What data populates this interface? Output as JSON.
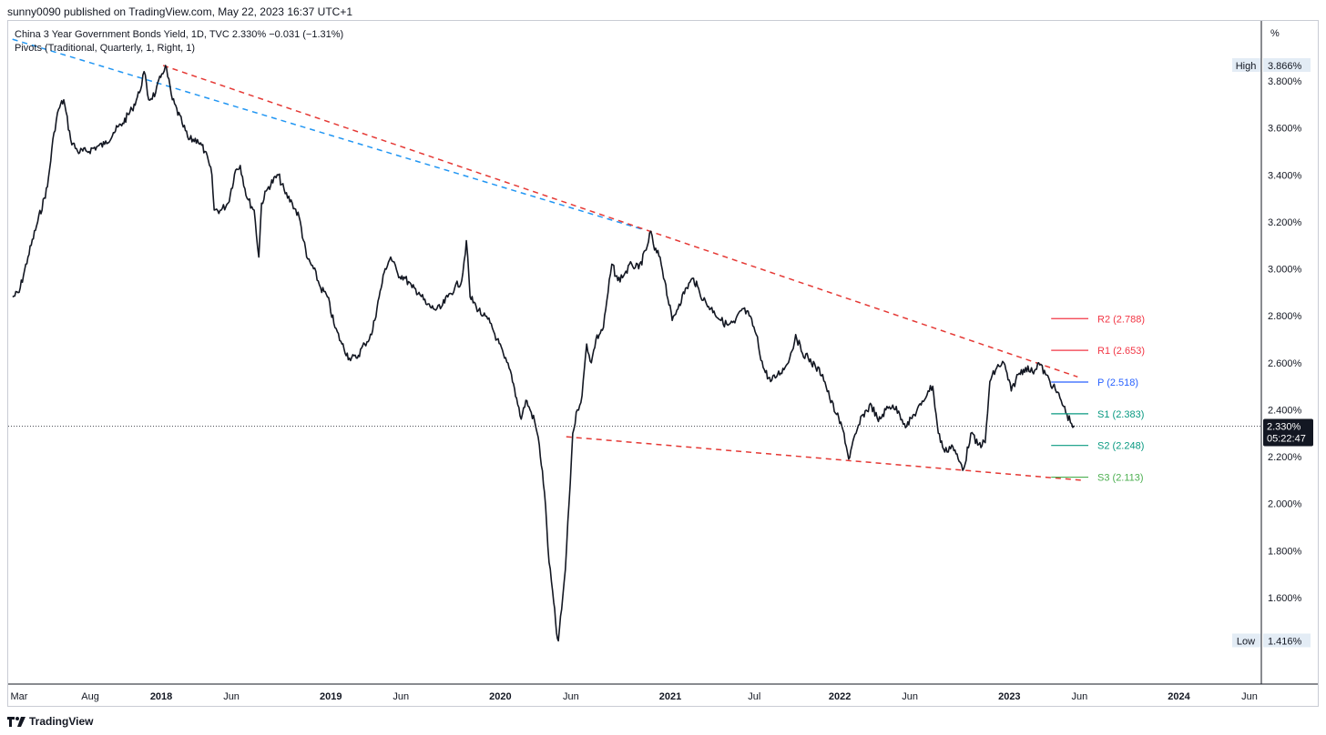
{
  "header": {
    "published_text": "sunny0090 published on TradingView.com, May 22, 2023 16:37 UTC+1"
  },
  "legend": {
    "line1": "China 3 Year Government Bonds Yield, 1D, TVC  2.330%  −0.031 (−1.31%)",
    "line2": "Pivots (Traditional, Quarterly, 1, Right, 1)"
  },
  "footer": {
    "brand": "TradingView"
  },
  "chart_data": {
    "type": "line",
    "title": "China 3 Year Government Bonds Yield, 1D, TVC",
    "y_unit_label": "%",
    "ylim": [
      1.3,
      3.97
    ],
    "y_ticks": [
      "3.800%",
      "3.600%",
      "3.400%",
      "3.200%",
      "3.000%",
      "2.800%",
      "2.600%",
      "2.400%",
      "2.200%",
      "2.000%",
      "1.800%",
      "1.600%"
    ],
    "y_tick_values": [
      3.8,
      3.6,
      3.4,
      3.2,
      3.0,
      2.8,
      2.6,
      2.4,
      2.2,
      2.0,
      1.8,
      1.6
    ],
    "x_ticks": [
      {
        "label": "Mar",
        "date": "2017-03-01",
        "bold": false
      },
      {
        "label": "Aug",
        "date": "2017-08-01",
        "bold": false
      },
      {
        "label": "2018",
        "date": "2018-01-01",
        "bold": true
      },
      {
        "label": "Jun",
        "date": "2018-06-01",
        "bold": false
      },
      {
        "label": "2019",
        "date": "2019-01-01",
        "bold": true
      },
      {
        "label": "Jun",
        "date": "2019-06-01",
        "bold": false
      },
      {
        "label": "2020",
        "date": "2020-01-01",
        "bold": true
      },
      {
        "label": "Jun",
        "date": "2020-06-01",
        "bold": false
      },
      {
        "label": "2021",
        "date": "2021-01-01",
        "bold": true
      },
      {
        "label": "Jul",
        "date": "2021-07-01",
        "bold": false
      },
      {
        "label": "2022",
        "date": "2022-01-01",
        "bold": true
      },
      {
        "label": "Jun",
        "date": "2022-06-01",
        "bold": false
      },
      {
        "label": "2023",
        "date": "2023-01-01",
        "bold": true
      },
      {
        "label": "Jun",
        "date": "2023-06-01",
        "bold": false
      },
      {
        "label": "2024",
        "date": "2024-01-01",
        "bold": true
      },
      {
        "label": "Jun",
        "date": "2024-06-01",
        "bold": false
      }
    ],
    "series": [
      {
        "color": "#131722",
        "points": [
          [
            "2017-02-15",
            2.88
          ],
          [
            "2017-03-01",
            2.9
          ],
          [
            "2017-03-20",
            3.05
          ],
          [
            "2017-04-10",
            3.2
          ],
          [
            "2017-05-01",
            3.35
          ],
          [
            "2017-05-15",
            3.58
          ],
          [
            "2017-05-25",
            3.68
          ],
          [
            "2017-06-05",
            3.72
          ],
          [
            "2017-06-20",
            3.55
          ],
          [
            "2017-07-05",
            3.5
          ],
          [
            "2017-07-25",
            3.5
          ],
          [
            "2017-08-15",
            3.52
          ],
          [
            "2017-09-01",
            3.53
          ],
          [
            "2017-09-20",
            3.58
          ],
          [
            "2017-10-10",
            3.62
          ],
          [
            "2017-10-30",
            3.68
          ],
          [
            "2017-11-15",
            3.75
          ],
          [
            "2017-11-25",
            3.84
          ],
          [
            "2017-12-05",
            3.72
          ],
          [
            "2017-12-20",
            3.75
          ],
          [
            "2018-01-02",
            3.83
          ],
          [
            "2018-01-10",
            3.866
          ],
          [
            "2018-01-25",
            3.72
          ],
          [
            "2018-02-15",
            3.62
          ],
          [
            "2018-03-01",
            3.55
          ],
          [
            "2018-03-20",
            3.55
          ],
          [
            "2018-04-05",
            3.5
          ],
          [
            "2018-04-20",
            3.4
          ],
          [
            "2018-04-25",
            3.25
          ],
          [
            "2018-05-10",
            3.25
          ],
          [
            "2018-05-25",
            3.28
          ],
          [
            "2018-06-10",
            3.42
          ],
          [
            "2018-06-20",
            3.44
          ],
          [
            "2018-07-05",
            3.3
          ],
          [
            "2018-07-20",
            3.25
          ],
          [
            "2018-07-30",
            3.05
          ],
          [
            "2018-08-05",
            3.28
          ],
          [
            "2018-08-20",
            3.35
          ],
          [
            "2018-09-10",
            3.4
          ],
          [
            "2018-09-25",
            3.32
          ],
          [
            "2018-10-10",
            3.28
          ],
          [
            "2018-10-25",
            3.22
          ],
          [
            "2018-11-10",
            3.05
          ],
          [
            "2018-11-25",
            3.0
          ],
          [
            "2018-12-10",
            2.92
          ],
          [
            "2018-12-25",
            2.88
          ],
          [
            "2019-01-10",
            2.75
          ],
          [
            "2019-01-25",
            2.68
          ],
          [
            "2019-02-10",
            2.62
          ],
          [
            "2019-02-25",
            2.62
          ],
          [
            "2019-03-15",
            2.68
          ],
          [
            "2019-03-30",
            2.72
          ],
          [
            "2019-04-15",
            2.88
          ],
          [
            "2019-04-28",
            3.0
          ],
          [
            "2019-05-10",
            3.05
          ],
          [
            "2019-05-25",
            2.98
          ],
          [
            "2019-06-10",
            2.96
          ],
          [
            "2019-06-25",
            2.92
          ],
          [
            "2019-07-10",
            2.9
          ],
          [
            "2019-07-25",
            2.85
          ],
          [
            "2019-08-10",
            2.83
          ],
          [
            "2019-08-25",
            2.83
          ],
          [
            "2019-09-10",
            2.88
          ],
          [
            "2019-09-25",
            2.92
          ],
          [
            "2019-10-10",
            2.95
          ],
          [
            "2019-10-20",
            3.12
          ],
          [
            "2019-10-28",
            2.88
          ],
          [
            "2019-11-10",
            2.84
          ],
          [
            "2019-11-25",
            2.8
          ],
          [
            "2019-12-10",
            2.77
          ],
          [
            "2019-12-25",
            2.7
          ],
          [
            "2020-01-10",
            2.62
          ],
          [
            "2020-01-25",
            2.55
          ],
          [
            "2020-02-05",
            2.45
          ],
          [
            "2020-02-15",
            2.36
          ],
          [
            "2020-02-25",
            2.44
          ],
          [
            "2020-03-05",
            2.4
          ],
          [
            "2020-03-15",
            2.35
          ],
          [
            "2020-03-25",
            2.25
          ],
          [
            "2020-04-05",
            2.05
          ],
          [
            "2020-04-15",
            1.75
          ],
          [
            "2020-04-25",
            1.58
          ],
          [
            "2020-05-01",
            1.45
          ],
          [
            "2020-05-05",
            1.416
          ],
          [
            "2020-05-12",
            1.55
          ],
          [
            "2020-05-20",
            1.72
          ],
          [
            "2020-05-28",
            2.0
          ],
          [
            "2020-06-05",
            2.3
          ],
          [
            "2020-06-15",
            2.4
          ],
          [
            "2020-06-25",
            2.46
          ],
          [
            "2020-07-05",
            2.68
          ],
          [
            "2020-07-15",
            2.6
          ],
          [
            "2020-07-25",
            2.7
          ],
          [
            "2020-08-10",
            2.75
          ],
          [
            "2020-08-20",
            2.9
          ],
          [
            "2020-08-28",
            3.02
          ],
          [
            "2020-09-10",
            2.95
          ],
          [
            "2020-09-25",
            2.98
          ],
          [
            "2020-10-10",
            3.02
          ],
          [
            "2020-10-25",
            3.0
          ],
          [
            "2020-11-10",
            3.08
          ],
          [
            "2020-11-20",
            3.16
          ],
          [
            "2020-11-28",
            3.08
          ],
          [
            "2020-12-10",
            3.05
          ],
          [
            "2020-12-20",
            2.95
          ],
          [
            "2021-01-05",
            2.78
          ],
          [
            "2021-01-20",
            2.85
          ],
          [
            "2021-02-05",
            2.92
          ],
          [
            "2021-02-20",
            2.96
          ],
          [
            "2021-03-05",
            2.9
          ],
          [
            "2021-03-20",
            2.85
          ],
          [
            "2021-04-05",
            2.82
          ],
          [
            "2021-04-20",
            2.78
          ],
          [
            "2021-05-05",
            2.76
          ],
          [
            "2021-05-20",
            2.77
          ],
          [
            "2021-06-05",
            2.83
          ],
          [
            "2021-06-20",
            2.8
          ],
          [
            "2021-07-05",
            2.72
          ],
          [
            "2021-07-20",
            2.58
          ],
          [
            "2021-08-05",
            2.52
          ],
          [
            "2021-08-20",
            2.55
          ],
          [
            "2021-09-05",
            2.58
          ],
          [
            "2021-09-20",
            2.65
          ],
          [
            "2021-09-28",
            2.72
          ],
          [
            "2021-10-10",
            2.65
          ],
          [
            "2021-10-25",
            2.62
          ],
          [
            "2021-11-10",
            2.58
          ],
          [
            "2021-11-25",
            2.55
          ],
          [
            "2021-12-10",
            2.45
          ],
          [
            "2021-12-25",
            2.38
          ],
          [
            "2022-01-10",
            2.3
          ],
          [
            "2022-01-20",
            2.19
          ],
          [
            "2022-02-05",
            2.3
          ],
          [
            "2022-02-20",
            2.38
          ],
          [
            "2022-03-10",
            2.42
          ],
          [
            "2022-03-25",
            2.35
          ],
          [
            "2022-04-10",
            2.4
          ],
          [
            "2022-04-25",
            2.42
          ],
          [
            "2022-05-10",
            2.38
          ],
          [
            "2022-05-25",
            2.33
          ],
          [
            "2022-06-10",
            2.38
          ],
          [
            "2022-06-25",
            2.42
          ],
          [
            "2022-07-10",
            2.48
          ],
          [
            "2022-07-20",
            2.5
          ],
          [
            "2022-08-01",
            2.3
          ],
          [
            "2022-08-15",
            2.22
          ],
          [
            "2022-08-30",
            2.25
          ],
          [
            "2022-09-15",
            2.18
          ],
          [
            "2022-09-25",
            2.15
          ],
          [
            "2022-10-10",
            2.3
          ],
          [
            "2022-10-25",
            2.25
          ],
          [
            "2022-11-10",
            2.26
          ],
          [
            "2022-11-20",
            2.52
          ],
          [
            "2022-12-05",
            2.58
          ],
          [
            "2022-12-20",
            2.6
          ],
          [
            "2023-01-05",
            2.48
          ],
          [
            "2023-01-20",
            2.55
          ],
          [
            "2023-02-05",
            2.58
          ],
          [
            "2023-02-20",
            2.56
          ],
          [
            "2023-03-05",
            2.6
          ],
          [
            "2023-03-20",
            2.55
          ],
          [
            "2023-04-05",
            2.5
          ],
          [
            "2023-04-20",
            2.45
          ],
          [
            "2023-05-05",
            2.38
          ],
          [
            "2023-05-15",
            2.34
          ],
          [
            "2023-05-22",
            2.33
          ]
        ]
      }
    ],
    "trendlines": [
      {
        "color": "#2196f3",
        "from": [
          "2017-01-25",
          3.99
        ],
        "to": [
          "2020-10-30",
          3.17
        ]
      },
      {
        "color": "#e53935",
        "from": [
          "2018-01-05",
          3.866
        ],
        "to": [
          "2023-05-28",
          2.54
        ]
      },
      {
        "color": "#e53935",
        "from": [
          "2020-05-22",
          2.285
        ],
        "to": [
          "2023-06-05",
          2.1
        ]
      }
    ],
    "pivots": [
      {
        "label": "R2 (2.788)",
        "value": 2.788,
        "color": "#f23645"
      },
      {
        "label": "R1 (2.653)",
        "value": 2.653,
        "color": "#f23645"
      },
      {
        "label": "P (2.518)",
        "value": 2.518,
        "color": "#2962ff"
      },
      {
        "label": "S1 (2.383)",
        "value": 2.383,
        "color": "#089981"
      },
      {
        "label": "S2 (2.248)",
        "value": 2.248,
        "color": "#089981"
      },
      {
        "label": "S3 (2.113)",
        "value": 2.113,
        "color": "#4caf50"
      }
    ],
    "pivot_range": [
      "2023-04-01",
      "2023-06-20"
    ],
    "high": {
      "label": "High",
      "value_text": "3.866%",
      "value": 3.866
    },
    "low": {
      "label": "Low",
      "value_text": "1.416%",
      "value": 1.416
    },
    "last": {
      "value_text": "2.330%",
      "countdown": "05:22:47",
      "value": 2.33
    },
    "grid": false,
    "legend": "top-left"
  }
}
